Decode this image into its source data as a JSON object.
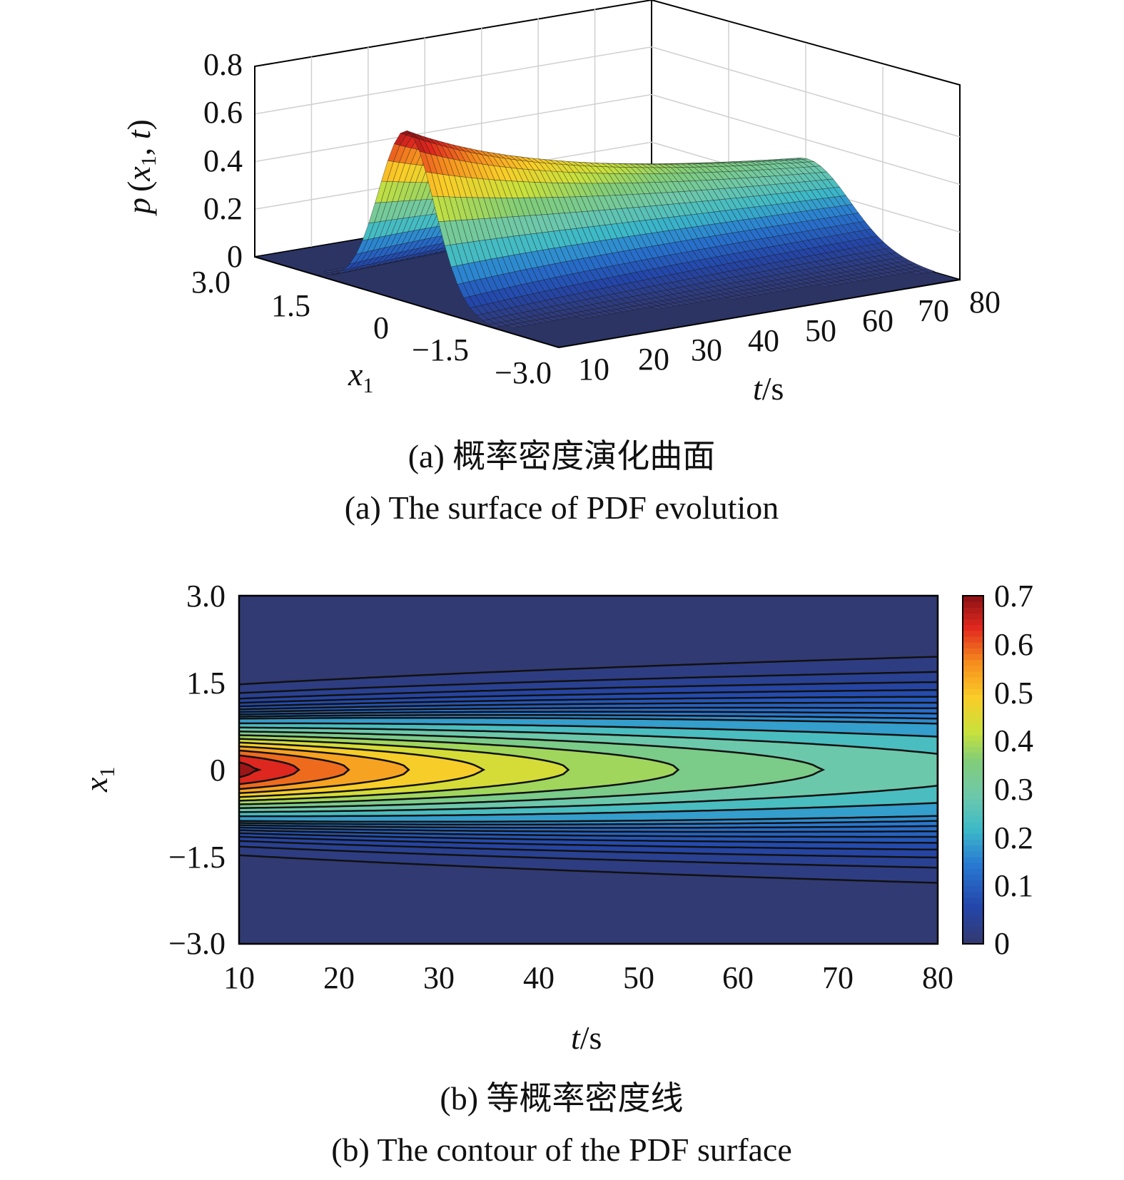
{
  "chart_data": [
    {
      "id": "a",
      "type": "surface",
      "caption_cn": "(a) 概率密度演化曲面",
      "caption_en": "(a) The surface of PDF evolution",
      "zlabel": {
        "p": "p",
        "open": "(",
        "x": "x",
        "sub": "1",
        "comma": ", ",
        "t": "t",
        "close": ")"
      },
      "xlabel": {
        "x": "x",
        "sub": "1"
      },
      "tlabel": {
        "t": "t",
        "unit": "/s"
      },
      "t_ticks": [
        "10",
        "20",
        "30",
        "40",
        "50",
        "60",
        "70",
        "80"
      ],
      "x1_ticks": [
        "3.0",
        "1.5",
        "0",
        "−1.5",
        "−3.0"
      ],
      "z_ticks": [
        "0",
        "0.2",
        "0.4",
        "0.6",
        "0.8"
      ],
      "t_range": [
        10,
        80
      ],
      "x1_range": [
        -3,
        3
      ],
      "z_range": [
        0,
        0.8
      ],
      "peak_value": 0.72,
      "peak_t": 10,
      "grid": true,
      "colormap": "jet"
    },
    {
      "id": "b",
      "type": "contour",
      "caption_cn": "(b) 等概率密度线",
      "caption_en": "(b) The contour of the PDF surface",
      "xlabel": {
        "t": "t",
        "unit": "/s"
      },
      "ylabel": {
        "x": "x",
        "sub": "1"
      },
      "x_ticks": [
        "10",
        "20",
        "30",
        "40",
        "50",
        "60",
        "70",
        "80"
      ],
      "y_ticks": [
        "3.0",
        "1.5",
        "0",
        "−1.5",
        "−3.0"
      ],
      "colorbar_ticks": [
        "0.7",
        "0.6",
        "0.5",
        "0.4",
        "0.3",
        "0.2",
        "0.1",
        "0"
      ],
      "x_range": [
        10,
        80
      ],
      "y_range": [
        -3,
        3
      ],
      "color_range": [
        0,
        0.72
      ],
      "contour_levels": [
        0.02,
        0.04,
        0.06,
        0.08,
        0.1,
        0.12,
        0.14,
        0.16,
        0.18,
        0.2,
        0.25,
        0.3,
        0.35,
        0.4,
        0.45,
        0.5,
        0.55,
        0.6,
        0.65,
        0.7
      ],
      "colormap": "jet"
    }
  ]
}
